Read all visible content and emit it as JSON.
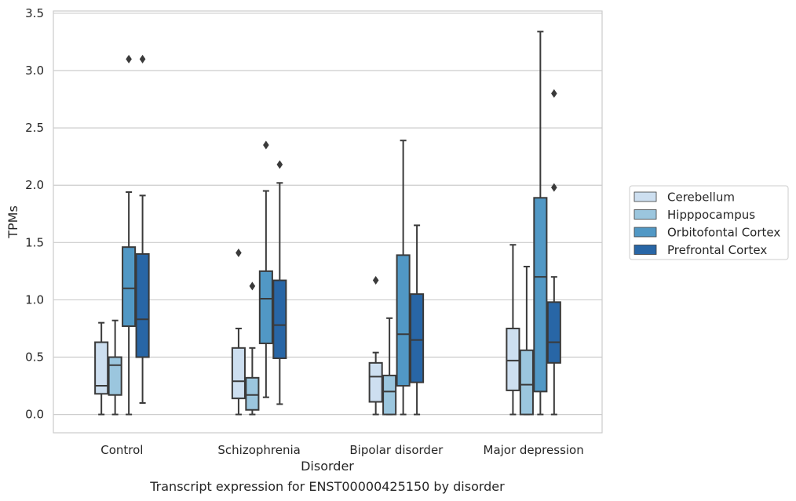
{
  "chart_data": {
    "type": "box",
    "title": "",
    "caption": "Transcript expression for ENST00000425150 by disorder",
    "xlabel": "Disorder",
    "ylabel": "TPMs",
    "ylim": [
      -0.16,
      3.52
    ],
    "yticks": [
      "0.0",
      "0.5",
      "1.0",
      "1.5",
      "2.0",
      "2.5",
      "3.0",
      "3.5"
    ],
    "ytick_values": [
      0,
      0.5,
      1.0,
      1.5,
      2.0,
      2.5,
      3.0,
      3.5
    ],
    "grid": true,
    "legend_position": "right",
    "categories": [
      "Control",
      "Schizophrenia",
      "Bipolar disorder",
      "Major depression"
    ],
    "series": [
      {
        "name": "Cerebellum",
        "color": "#cddff0",
        "boxes": [
          {
            "whislo": 0.0,
            "q1": 0.18,
            "med": 0.25,
            "q3": 0.63,
            "whishi": 0.8,
            "fliers": []
          },
          {
            "whislo": 0.0,
            "q1": 0.14,
            "med": 0.29,
            "q3": 0.58,
            "whishi": 0.75,
            "fliers": [
              1.41
            ]
          },
          {
            "whislo": 0.0,
            "q1": 0.11,
            "med": 0.33,
            "q3": 0.45,
            "whishi": 0.54,
            "fliers": [
              1.17
            ]
          },
          {
            "whislo": 0.0,
            "q1": 0.21,
            "med": 0.47,
            "q3": 0.75,
            "whishi": 1.48,
            "fliers": []
          }
        ]
      },
      {
        "name": "Hipppocampus",
        "color": "#9bc6de",
        "boxes": [
          {
            "whislo": 0.0,
            "q1": 0.17,
            "med": 0.43,
            "q3": 0.5,
            "whishi": 0.82,
            "fliers": []
          },
          {
            "whislo": 0.0,
            "q1": 0.04,
            "med": 0.17,
            "q3": 0.32,
            "whishi": 0.58,
            "fliers": [
              1.12
            ]
          },
          {
            "whislo": 0.0,
            "q1": 0.0,
            "med": 0.2,
            "q3": 0.34,
            "whishi": 0.84,
            "fliers": []
          },
          {
            "whislo": 0.0,
            "q1": 0.0,
            "med": 0.26,
            "q3": 0.56,
            "whishi": 1.29,
            "fliers": []
          }
        ]
      },
      {
        "name": "Orbitofontal Cortex",
        "color": "#5198c5",
        "boxes": [
          {
            "whislo": 0.0,
            "q1": 0.77,
            "med": 1.1,
            "q3": 1.46,
            "whishi": 1.94,
            "fliers": [
              3.1
            ]
          },
          {
            "whislo": 0.15,
            "q1": 0.62,
            "med": 1.01,
            "q3": 1.25,
            "whishi": 1.95,
            "fliers": [
              2.35
            ]
          },
          {
            "whislo": 0.0,
            "q1": 0.25,
            "med": 0.7,
            "q3": 1.39,
            "whishi": 2.39,
            "fliers": []
          },
          {
            "whislo": 0.0,
            "q1": 0.2,
            "med": 1.2,
            "q3": 1.89,
            "whishi": 3.34,
            "fliers": []
          }
        ]
      },
      {
        "name": "Prefrontal Cortex",
        "color": "#2866a6",
        "boxes": [
          {
            "whislo": 0.1,
            "q1": 0.5,
            "med": 0.83,
            "q3": 1.4,
            "whishi": 1.91,
            "fliers": [
              3.1
            ]
          },
          {
            "whislo": 0.09,
            "q1": 0.49,
            "med": 0.78,
            "q3": 1.17,
            "whishi": 2.02,
            "fliers": [
              2.18
            ]
          },
          {
            "whislo": 0.0,
            "q1": 0.28,
            "med": 0.65,
            "q3": 1.05,
            "whishi": 1.65,
            "fliers": []
          },
          {
            "whislo": 0.0,
            "q1": 0.45,
            "med": 0.63,
            "q3": 0.98,
            "whishi": 1.2,
            "fliers": [
              1.98,
              2.8
            ]
          }
        ]
      }
    ]
  }
}
